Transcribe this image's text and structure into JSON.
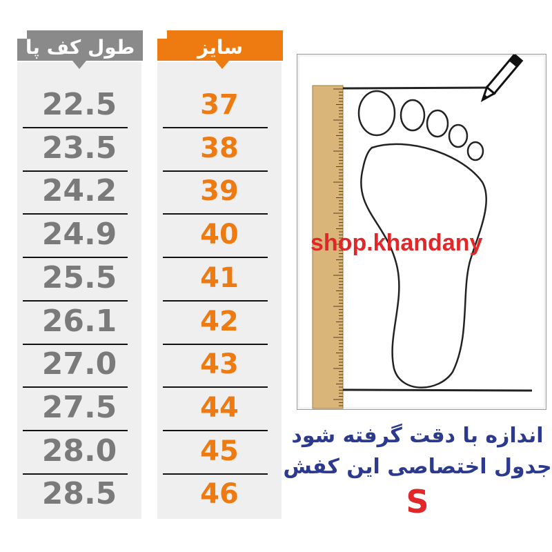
{
  "headers": {
    "foot_length": "طول کف پا",
    "size": "سایز"
  },
  "rows": [
    {
      "length": "22.5",
      "size": "37"
    },
    {
      "length": "23.5",
      "size": "38"
    },
    {
      "length": "24.2",
      "size": "39"
    },
    {
      "length": "24.9",
      "size": "40"
    },
    {
      "length": "25.5",
      "size": "41"
    },
    {
      "length": "26.1",
      "size": "42"
    },
    {
      "length": "27.0",
      "size": "43"
    },
    {
      "length": "27.5",
      "size": "44"
    },
    {
      "length": "28.0",
      "size": "45"
    },
    {
      "length": "28.5",
      "size": "46"
    }
  ],
  "watermark": "shop.khandany",
  "captions": {
    "line1": "اندازه با دقت گرفته شود",
    "line2": "جدول اختصاصی این کفش",
    "line3": "S"
  },
  "colors": {
    "orange": "#ee7a12",
    "gray": "#8a8a8a",
    "navy": "#2b3a8f",
    "red": "#e0282a"
  },
  "icons": [
    "pencil-icon",
    "ruler-icon",
    "foot-outline-icon"
  ]
}
